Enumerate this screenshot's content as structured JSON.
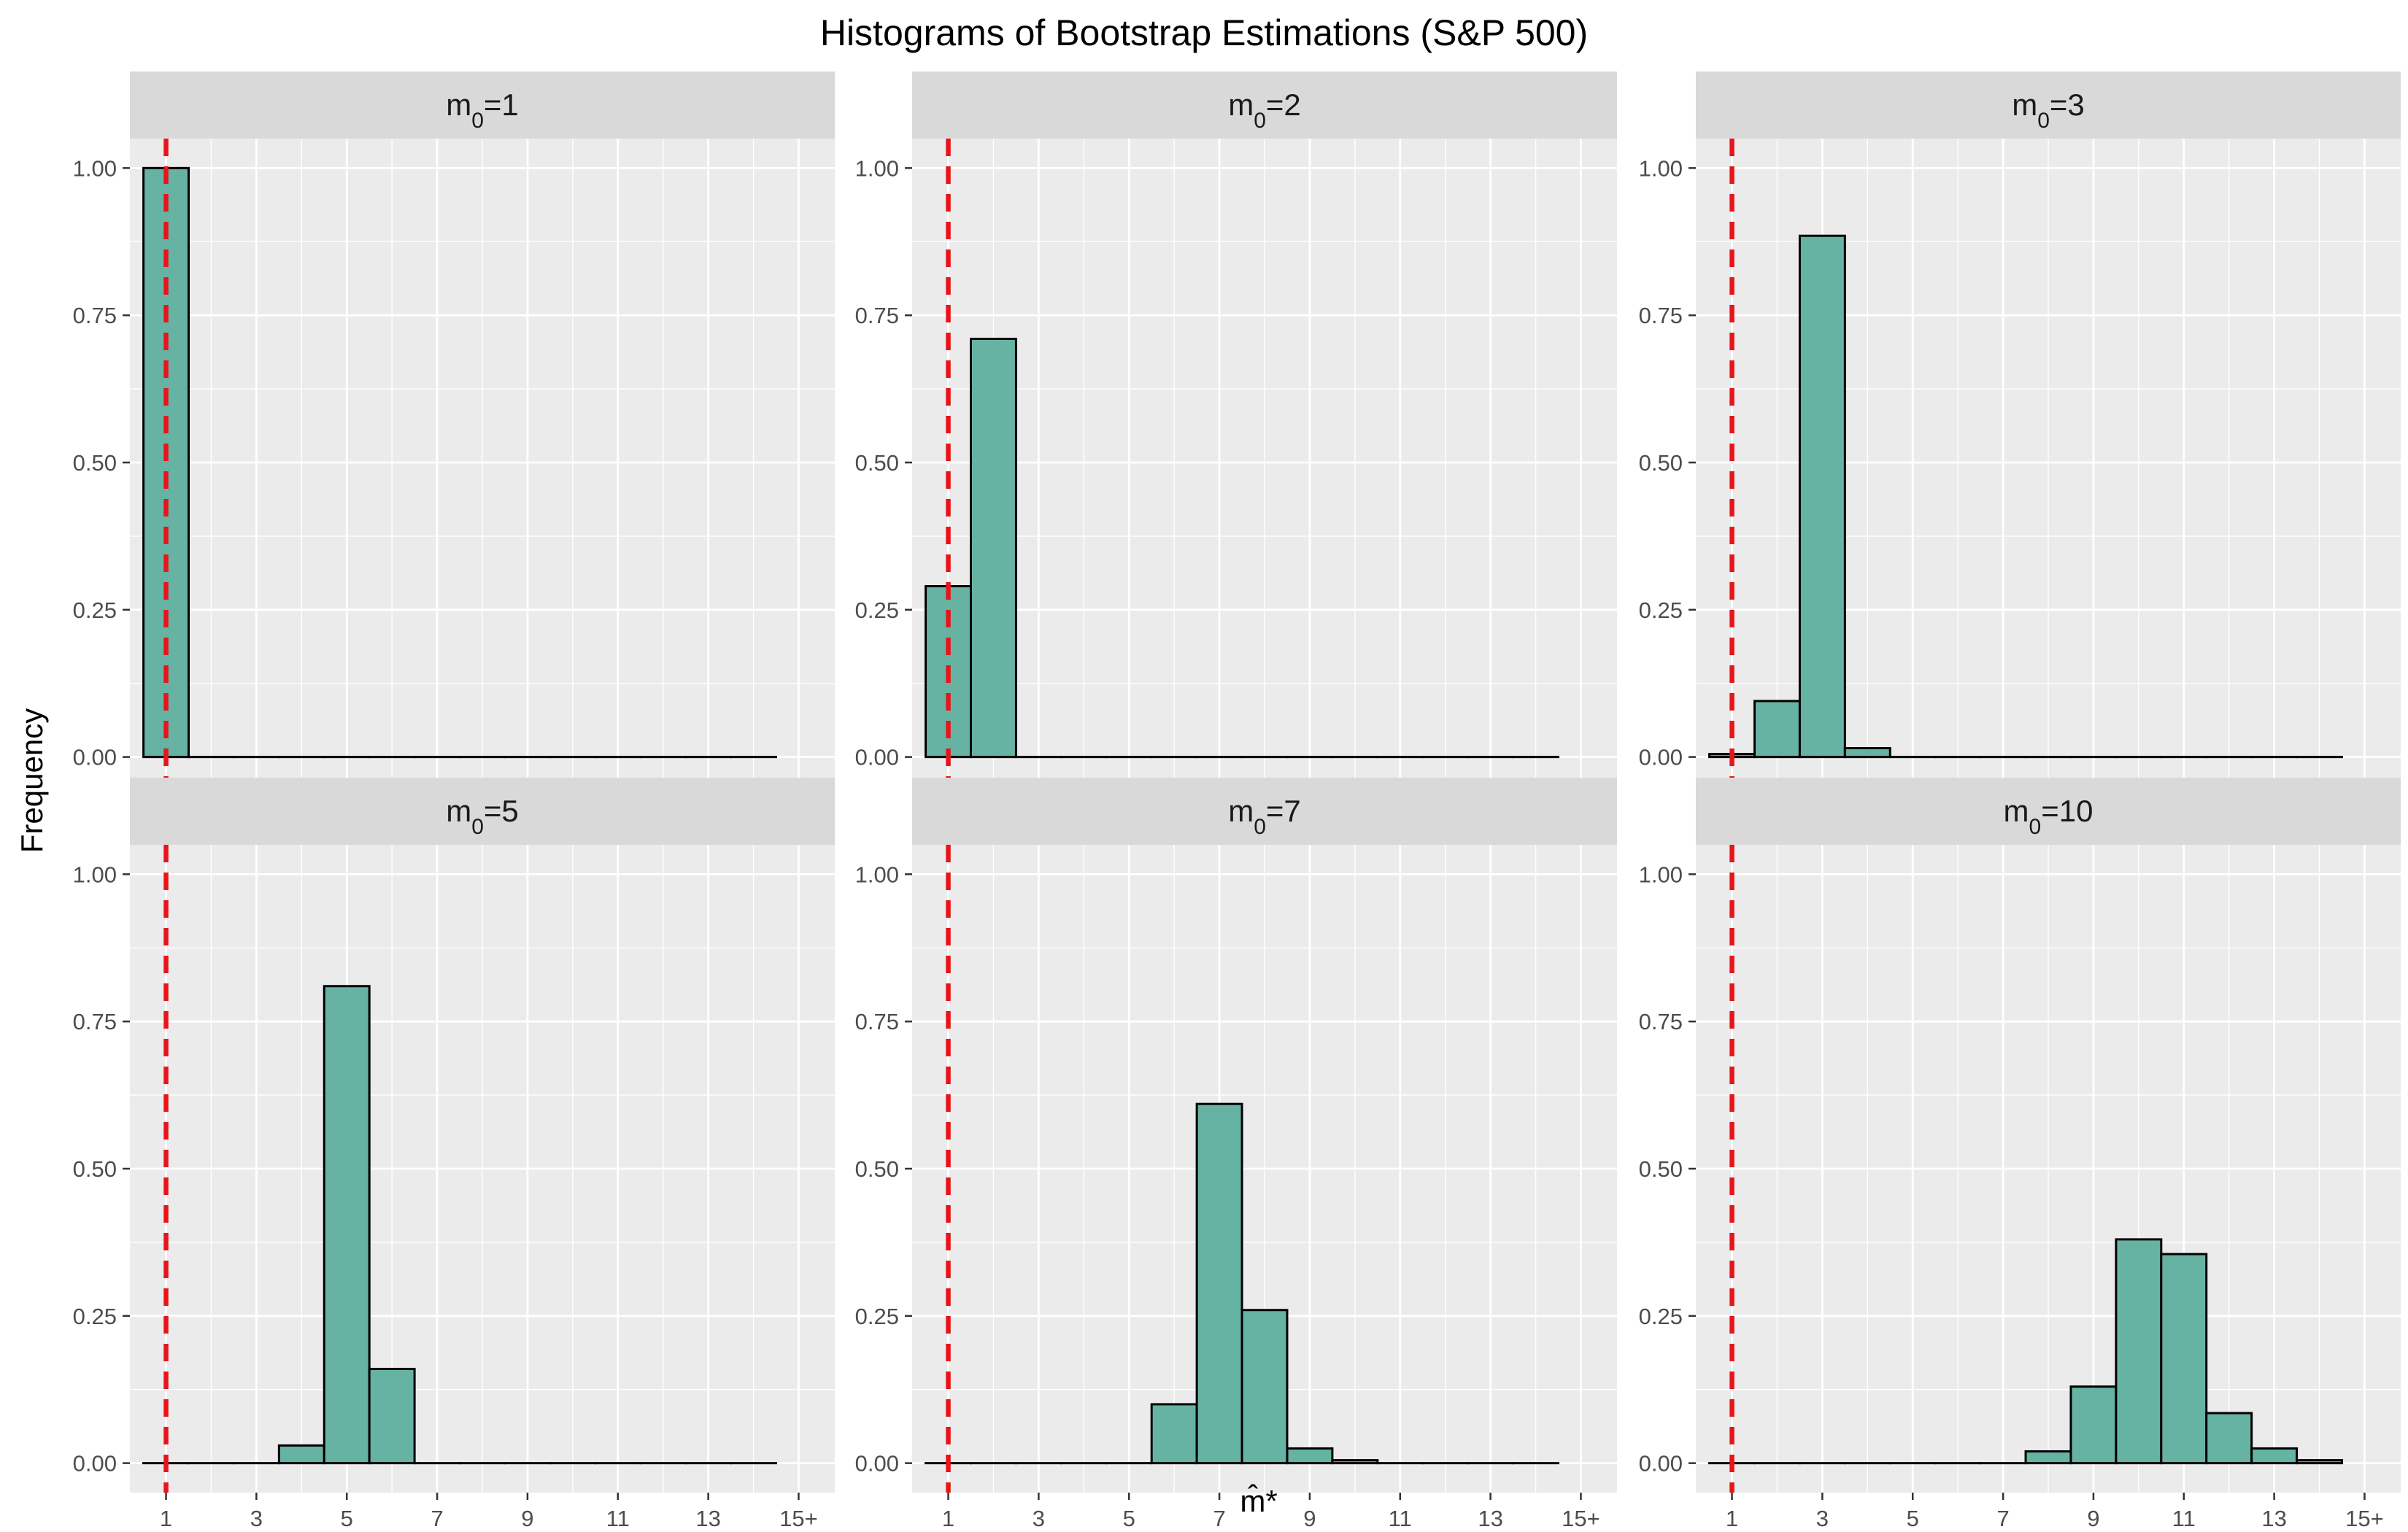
{
  "chart_data": {
    "type": "bar",
    "title": "Histograms of Bootstrap Estimations (S&P 500)",
    "xlabel": "m̂*",
    "ylabel": "Frequency",
    "facet_symbol": "m",
    "facet_subscript": "0",
    "x_categories": [
      1,
      2,
      3,
      4,
      5,
      6,
      7,
      8,
      9,
      10,
      11,
      12,
      13,
      14
    ],
    "x_tick_labels": [
      "1",
      "3",
      "5",
      "7",
      "9",
      "11",
      "13",
      "15+"
    ],
    "x_tick_values": [
      1,
      3,
      5,
      7,
      9,
      11,
      13,
      15
    ],
    "xlim": [
      0.2,
      15.8
    ],
    "y_tick_labels": [
      "0.00",
      "0.25",
      "0.50",
      "0.75",
      "1.00"
    ],
    "y_tick_values": [
      0,
      0.25,
      0.5,
      0.75,
      1.0
    ],
    "ylim": [
      -0.05,
      1.05
    ],
    "reference_line_x": 1,
    "grid": true,
    "colors": {
      "bar_fill": "#66b3a4",
      "bar_outline": "#000000",
      "reference_line": "#e8141b",
      "panel_background": "#ebebeb",
      "strip_background": "#d9d9d9",
      "grid": "#ffffff"
    },
    "panels": [
      {
        "facet_value": "1",
        "values": [
          1.0,
          0,
          0,
          0,
          0,
          0,
          0,
          0,
          0,
          0,
          0,
          0,
          0,
          0
        ]
      },
      {
        "facet_value": "2",
        "values": [
          0.29,
          0.71,
          0,
          0,
          0,
          0,
          0,
          0,
          0,
          0,
          0,
          0,
          0,
          0
        ]
      },
      {
        "facet_value": "3",
        "values": [
          0.005,
          0.095,
          0.885,
          0.015,
          0,
          0,
          0,
          0,
          0,
          0,
          0,
          0,
          0,
          0
        ]
      },
      {
        "facet_value": "5",
        "values": [
          0,
          0,
          0,
          0.03,
          0.81,
          0.16,
          0,
          0,
          0,
          0,
          0,
          0,
          0,
          0
        ]
      },
      {
        "facet_value": "7",
        "values": [
          0,
          0,
          0,
          0,
          0,
          0.1,
          0.61,
          0.26,
          0.025,
          0.005,
          0,
          0,
          0,
          0
        ]
      },
      {
        "facet_value": "10",
        "values": [
          0,
          0,
          0,
          0,
          0,
          0,
          0,
          0.02,
          0.13,
          0.38,
          0.355,
          0.085,
          0.025,
          0.005
        ]
      }
    ]
  }
}
